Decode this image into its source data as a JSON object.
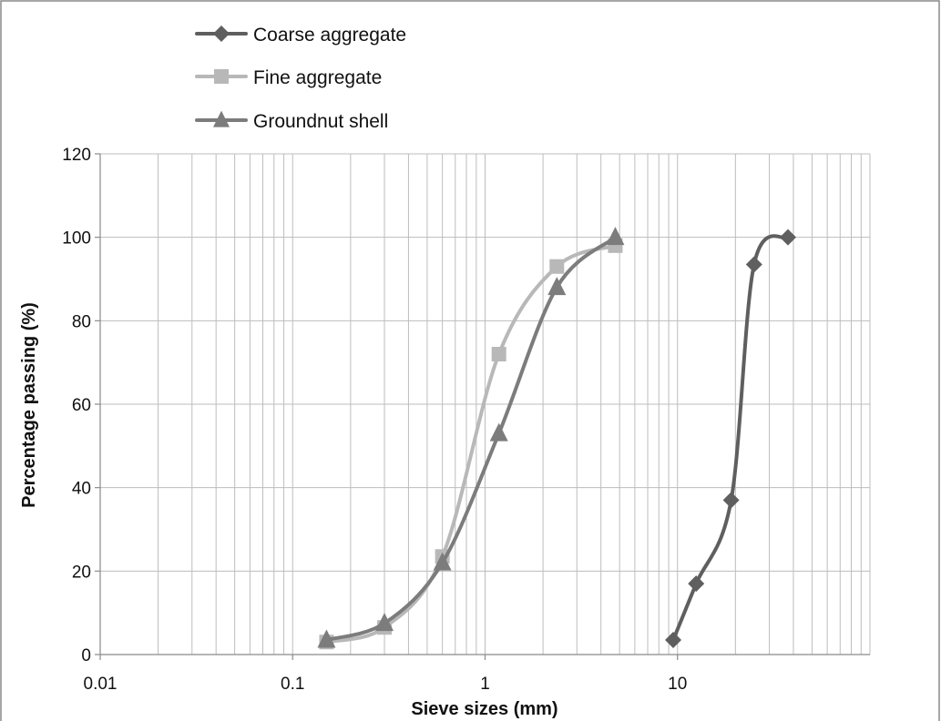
{
  "chart_data": {
    "type": "line",
    "title": "",
    "xlabel": "Sieve sizes (mm)",
    "ylabel": "Percentage passing (%)",
    "x_scale": "log",
    "xlim": [
      0.01,
      100
    ],
    "ylim": [
      0,
      120
    ],
    "x_ticks": [
      0.01,
      0.1,
      1,
      10
    ],
    "x_tick_labels": [
      "0.01",
      "0.1",
      "1",
      "10"
    ],
    "y_ticks": [
      0,
      20,
      40,
      60,
      80,
      100,
      120
    ],
    "y_tick_labels": [
      "0",
      "20",
      "40",
      "60",
      "80",
      "100",
      "120"
    ],
    "grid": true,
    "legend_position": "top-left",
    "series": [
      {
        "name": "Coarse aggregate",
        "marker": "diamond",
        "color": "#5f5f5f",
        "x": [
          9.5,
          12.5,
          19,
          25,
          37.5
        ],
        "y": [
          3.5,
          17,
          37,
          93.5,
          100
        ]
      },
      {
        "name": "Fine aggregate",
        "marker": "square",
        "color": "#b8b8b8",
        "x": [
          0.15,
          0.3,
          0.6,
          1.18,
          2.36,
          4.75
        ],
        "y": [
          3,
          6.5,
          23.5,
          72,
          93,
          98
        ]
      },
      {
        "name": "Groundnut shell",
        "marker": "triangle",
        "color": "#7c7c7c",
        "x": [
          0.15,
          0.3,
          0.6,
          1.18,
          2.36,
          4.75
        ],
        "y": [
          3.5,
          7.5,
          22,
          53,
          88,
          100
        ]
      }
    ]
  }
}
